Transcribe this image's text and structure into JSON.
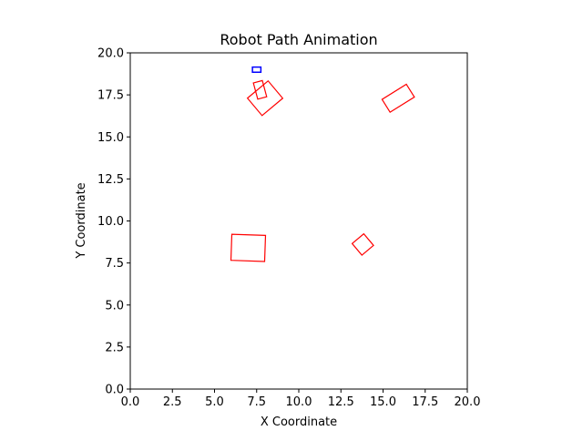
{
  "chart_data": {
    "type": "scatter",
    "title": "Robot Path Animation",
    "xlabel": "X Coordinate",
    "ylabel": "Y Coordinate",
    "xlim": [
      0,
      20
    ],
    "ylim": [
      0,
      20
    ],
    "xticks": [
      "0.0",
      "2.5",
      "5.0",
      "7.5",
      "10.0",
      "12.5",
      "15.0",
      "17.5",
      "20.0"
    ],
    "yticks": [
      "0.0",
      "2.5",
      "5.0",
      "7.5",
      "10.0",
      "12.5",
      "15.0",
      "17.5",
      "20.0"
    ],
    "grid": false,
    "legend": "none",
    "robot": {
      "color": "#0000ff",
      "center": [
        7.5,
        19.0
      ],
      "width": 0.5,
      "height": 0.3,
      "angle_deg": 0
    },
    "obstacles": {
      "color": "#ff0000",
      "items": [
        {
          "center": [
            7.7,
            17.8
          ],
          "width": 0.55,
          "height": 1.0,
          "angle_deg": 15
        },
        {
          "center": [
            8.0,
            17.3
          ],
          "width": 1.6,
          "height": 1.35,
          "angle_deg": 40
        },
        {
          "center": [
            15.9,
            17.3
          ],
          "width": 1.7,
          "height": 0.9,
          "angle_deg": 32
        },
        {
          "center": [
            7.0,
            8.4
          ],
          "width": 2.0,
          "height": 1.55,
          "angle_deg": -2
        },
        {
          "center": [
            13.8,
            8.6
          ],
          "width": 0.9,
          "height": 0.9,
          "angle_deg": 40
        }
      ]
    }
  }
}
